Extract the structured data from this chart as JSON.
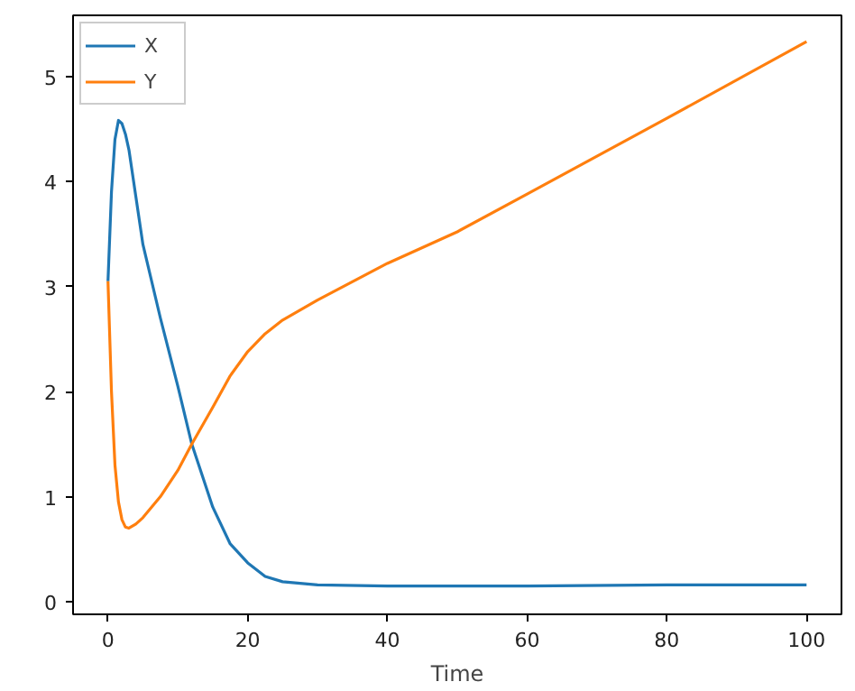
{
  "chart_data": {
    "type": "line",
    "xlabel": "Time",
    "legend": "top left",
    "grid": false,
    "xlim": [
      -5,
      105
    ],
    "ylim": [
      -0.12,
      5.58
    ],
    "xticks": [
      0,
      20,
      40,
      60,
      80,
      100
    ],
    "yticks": [
      0,
      1,
      2,
      3,
      4,
      5
    ],
    "x": [
      0,
      0.5,
      1,
      1.5,
      2,
      2.5,
      3,
      4,
      5,
      7.5,
      10,
      12,
      15,
      17.5,
      20,
      22.5,
      25,
      30,
      40,
      50,
      60,
      80,
      100
    ],
    "series": [
      {
        "name": "X",
        "color": "#1f77b4",
        "values": [
          3.05,
          3.9,
          4.4,
          4.58,
          4.55,
          4.45,
          4.3,
          3.85,
          3.4,
          2.7,
          2.05,
          1.5,
          0.9,
          0.55,
          0.37,
          0.24,
          0.19,
          0.16,
          0.15,
          0.15,
          0.15,
          0.16,
          0.16
        ]
      },
      {
        "name": "Y",
        "color": "#ff7f0e",
        "values": [
          3.05,
          2.0,
          1.3,
          0.95,
          0.78,
          0.71,
          0.7,
          0.74,
          0.8,
          1.0,
          1.25,
          1.5,
          1.85,
          2.15,
          2.38,
          2.55,
          2.68,
          2.87,
          3.22,
          3.52,
          3.88,
          4.6,
          5.33
        ]
      }
    ]
  }
}
